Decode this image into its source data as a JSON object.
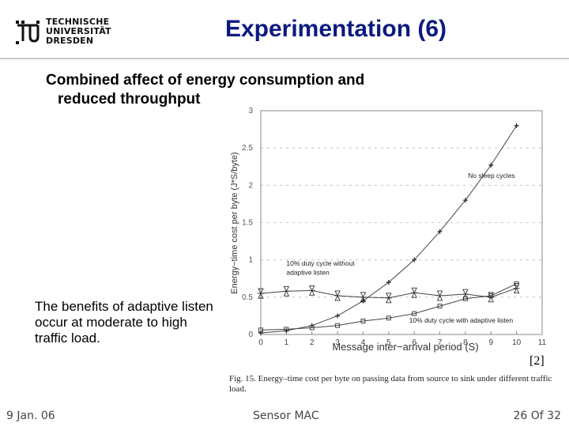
{
  "logo": {
    "line1": "TECHNISCHE",
    "line2": "UNIVERSITÄT",
    "line3": "DRESDEN",
    "icon": "tu-dresden-logo-icon"
  },
  "slide": {
    "title": "Experimentation (6)",
    "subtitle_line1": "Combined affect of energy consumption and",
    "subtitle_line2": "reduced throughput",
    "note": "The benefits of adaptive listen occur at moderate to high traffic load.",
    "reference": "[2]",
    "caption": "Fig. 15.   Energy–time cost per byte on passing data from source to sink under different traffic load."
  },
  "footer": {
    "date": "9 Jan. 06",
    "center": "Sensor MAC",
    "page": "26 Of 32"
  },
  "chart_data": {
    "type": "line",
    "xlabel": "Message inter−arrival period (S)",
    "ylabel": "Energy−time cost per byte (J*S/byte)",
    "xlim": [
      0,
      11
    ],
    "ylim": [
      0,
      3
    ],
    "xticks": [
      0,
      1,
      2,
      3,
      4,
      5,
      6,
      7,
      8,
      9,
      10,
      11
    ],
    "yticks": [
      0,
      0.5,
      1,
      1.5,
      2,
      2.5,
      3
    ],
    "ytick_labels": [
      "0",
      "0.5",
      "1",
      "1.5",
      "2",
      "2.5",
      "3"
    ],
    "grid": true,
    "annotations": [
      {
        "text": "No sleep cycles",
        "x": 8.1,
        "y": 2.1
      },
      {
        "text": "10% duty cycle without",
        "x": 1.0,
        "y": 0.92
      },
      {
        "text": "adaptive listen",
        "x": 1.0,
        "y": 0.8
      },
      {
        "text": "10% duty cycle with adaptive listen",
        "x": 5.8,
        "y": 0.16
      }
    ],
    "series": [
      {
        "x": [
          0,
          1,
          2,
          3,
          4,
          5,
          6,
          7,
          8,
          9,
          10
        ],
        "y": [
          0.02,
          0.05,
          0.12,
          0.25,
          0.45,
          0.7,
          1.0,
          1.38,
          1.8,
          2.27,
          2.8
        ]
      },
      {
        "x": [
          0,
          1,
          2,
          3,
          4,
          5,
          6,
          7,
          8,
          9,
          10
        ],
        "y": [
          0.55,
          0.58,
          0.59,
          0.52,
          0.5,
          0.49,
          0.56,
          0.52,
          0.54,
          0.5,
          0.62
        ]
      },
      {
        "x": [
          0,
          1,
          2,
          3,
          4,
          5,
          6,
          7,
          8,
          9,
          10
        ],
        "y": [
          0.06,
          0.07,
          0.09,
          0.12,
          0.18,
          0.22,
          0.28,
          0.38,
          0.48,
          0.52,
          0.68
        ]
      }
    ]
  }
}
